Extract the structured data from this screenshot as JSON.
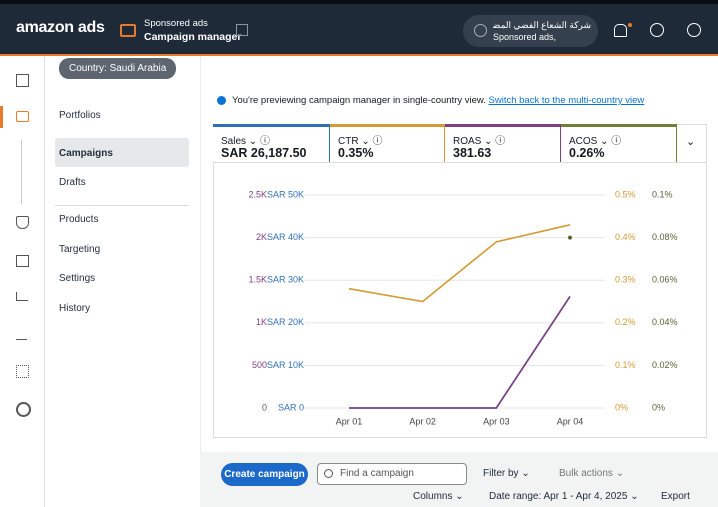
{
  "header": {
    "logo": "amazon ads",
    "product": "Sponsored ads",
    "page": "Campaign manager",
    "account_name": "شركة الشعاع الفضي المضيء",
    "account_sub": "Sponsored ads,"
  },
  "country_badge": "Country: Saudi Arabia",
  "nav": [
    "Portfolios",
    "Campaigns",
    "Drafts",
    "Products",
    "Targeting",
    "Settings",
    "History"
  ],
  "notice": {
    "text": "You're previewing campaign manager in single-country view.",
    "link": "Switch back to the multi-country view"
  },
  "metrics": [
    "SAR 26,187.50",
    "0.35%",
    "381.63",
    "0.26%"
  ],
  "chart_data": {
    "type": "line",
    "x": [
      "Apr 01",
      "Apr 02",
      "Apr 03",
      "Apr 04"
    ],
    "series": [
      {
        "name": "Sales",
        "color": "#2f6fb5",
        "axis": "y2",
        "values": [
          0,
          0,
          0,
          26187.5
        ]
      },
      {
        "name": "CTR",
        "color": "#d49a35",
        "axis": "y3",
        "values": [
          0.28,
          0.25,
          0.39,
          0.43
        ]
      },
      {
        "name": "ROAS",
        "color": "#7d3f7f",
        "axis": "y",
        "values": [
          0,
          0,
          0,
          1310
        ]
      },
      {
        "name": "ACOS",
        "color": "#5b6236",
        "axis": "y4",
        "values": [
          null,
          null,
          null,
          0.08
        ]
      }
    ],
    "ylim": [
      0,
      2500
    ],
    "yticks": [
      0,
      {
        "value": 500,
        "label": "500"
      },
      {
        "value": 1000,
        "label": "1K"
      },
      {
        "value": 1500,
        "label": "1.5K"
      },
      {
        "value": 2000,
        "label": "2K"
      },
      {
        "value": 2500,
        "label": "2.5K"
      }
    ],
    "y2lim": [
      0,
      50000
    ],
    "y2ticks": [
      {
        "value": 0,
        "label": "SAR 0"
      },
      {
        "value": 10000,
        "label": "SAR 10K"
      },
      {
        "value": 20000,
        "label": "SAR 20K"
      },
      {
        "value": 30000,
        "label": "SAR 30K"
      },
      {
        "value": 40000,
        "label": "SAR 40K"
      },
      {
        "value": 50000,
        "label": "SAR 50K"
      }
    ],
    "y3lim": [
      0,
      0.5
    ],
    "y3ticks": [
      {
        "value": 0,
        "label": "0%"
      },
      {
        "value": 0.1,
        "label": "0.1%"
      },
      {
        "value": 0.2,
        "label": "0.2%"
      },
      {
        "value": 0.3,
        "label": "0.3%"
      },
      {
        "value": 0.4,
        "label": "0.4%"
      },
      {
        "value": 0.5,
        "label": "0.5%"
      }
    ],
    "y4lim": [
      0,
      0.1
    ],
    "y4ticks": [
      {
        "value": 0,
        "label": "0%"
      },
      {
        "value": 0.02,
        "label": "0.02%"
      },
      {
        "value": 0.04,
        "label": "0.04%"
      },
      {
        "value": 0.06,
        "label": "0.06%"
      },
      {
        "value": 0.08,
        "label": "0.08%"
      },
      {
        "value": 0.1,
        "label": "0.1%"
      }
    ],
    "grid": true
  },
  "toolbar": {
    "create": "Create campaign",
    "search_placeholder": "Find a campaign",
    "filter": "Filter by",
    "bulk": "Bulk actions",
    "columns": "Columns",
    "date_range": "Date range: Apr 1 - Apr 4, 2025",
    "export": "Export"
  }
}
